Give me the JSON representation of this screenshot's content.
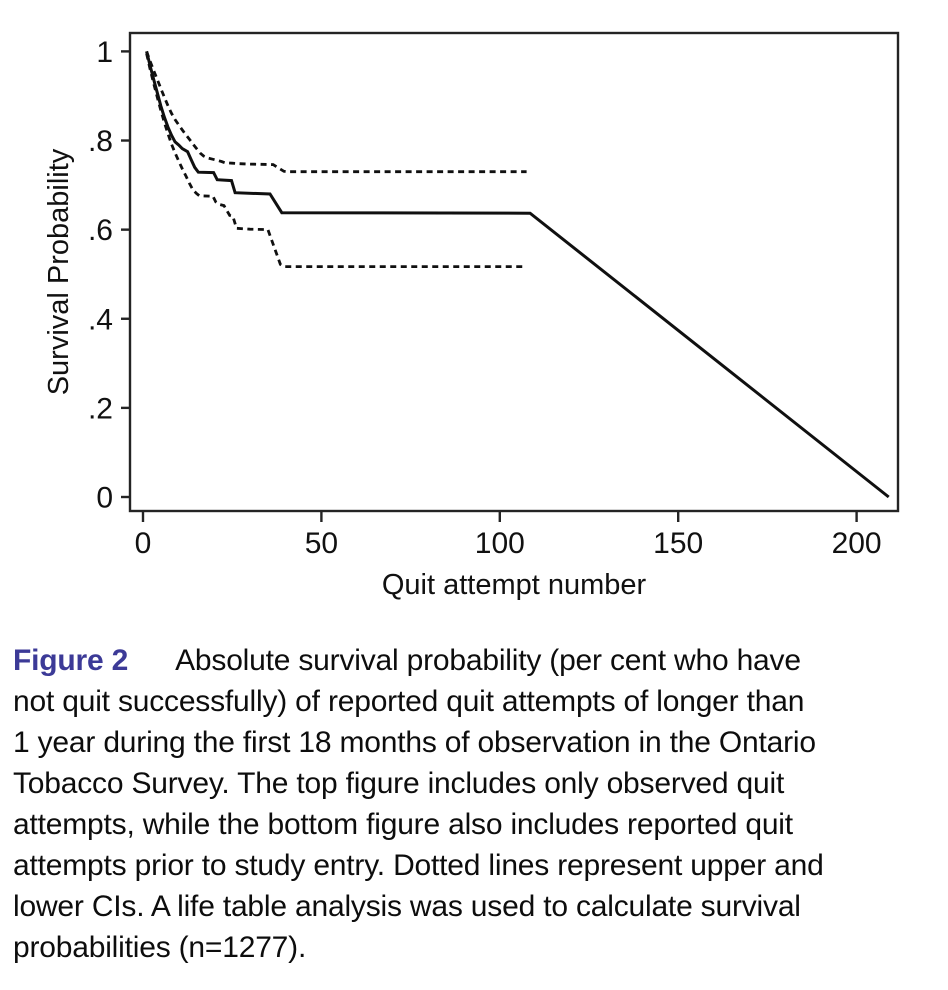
{
  "figure": {
    "caption": {
      "label": "Figure 2",
      "label_color": "#3c3a97",
      "lines": [
        "Absolute survival probability (per cent who have",
        "not quit successfully) of reported quit attempts of longer than",
        "1 year during the first 18 months of observation in the Ontario",
        "Tobacco Survey. The top figure includes only observed quit",
        "attempts, while the bottom figure also includes reported quit",
        "attempts prior to study entry. Dotted lines represent upper and",
        "lower CIs. A life table analysis was used to calculate survival",
        "probabilities (n=1277)."
      ],
      "sample_size": "n=1277"
    }
  },
  "chart_data": {
    "type": "line",
    "title": "",
    "xlabel": "Quit attempt number",
    "ylabel": "Survival Probability",
    "xlim": [
      0,
      211
    ],
    "ylim": [
      0,
      1
    ],
    "grid": false,
    "legend": "none",
    "line_color": "#101010",
    "xticks": [
      {
        "v": 0,
        "label": "0"
      },
      {
        "v": 50,
        "label": "50"
      },
      {
        "v": 100,
        "label": "100"
      },
      {
        "v": 150,
        "label": "150"
      },
      {
        "v": 200,
        "label": "200"
      }
    ],
    "yticks": [
      {
        "v": 0,
        "label": "0"
      },
      {
        "v": 0.2,
        "label": ".2"
      },
      {
        "v": 0.4,
        "label": ".4"
      },
      {
        "v": 0.6,
        "label": ".6"
      },
      {
        "v": 0.8,
        "label": ".8"
      },
      {
        "v": 1,
        "label": "1"
      }
    ],
    "series": [
      {
        "name": "Survival probability estimate",
        "id": "survival-line",
        "style": "solid",
        "points": [
          [
            1,
            1.0
          ],
          [
            2,
            0.968
          ],
          [
            3,
            0.937
          ],
          [
            4,
            0.907
          ],
          [
            5,
            0.878
          ],
          [
            6,
            0.852
          ],
          [
            7,
            0.83
          ],
          [
            8,
            0.812
          ],
          [
            9,
            0.797
          ],
          [
            10,
            0.79
          ],
          [
            11,
            0.782
          ],
          [
            12.5,
            0.775
          ],
          [
            13.5,
            0.757
          ],
          [
            14.5,
            0.74
          ],
          [
            15.5,
            0.729
          ],
          [
            19.8,
            0.728
          ],
          [
            20.8,
            0.712
          ],
          [
            24.8,
            0.71
          ],
          [
            25.8,
            0.683
          ],
          [
            35.6,
            0.68
          ],
          [
            38.9,
            0.638
          ],
          [
            108.5,
            0.637
          ],
          [
            209,
            0
          ]
        ]
      },
      {
        "name": "Upper CI",
        "id": "upper-ci-line",
        "style": "dashed",
        "points": [
          [
            1,
            1.0
          ],
          [
            2,
            0.978
          ],
          [
            3,
            0.957
          ],
          [
            4,
            0.937
          ],
          [
            5,
            0.917
          ],
          [
            6,
            0.897
          ],
          [
            7,
            0.878
          ],
          [
            8,
            0.861
          ],
          [
            9,
            0.847
          ],
          [
            10,
            0.835
          ],
          [
            11,
            0.824
          ],
          [
            12,
            0.813
          ],
          [
            13,
            0.803
          ],
          [
            14,
            0.792
          ],
          [
            15,
            0.782
          ],
          [
            16,
            0.772
          ],
          [
            17,
            0.765
          ],
          [
            18,
            0.761
          ],
          [
            19.5,
            0.758
          ],
          [
            20.5,
            0.756
          ],
          [
            22,
            0.753
          ],
          [
            23,
            0.75
          ],
          [
            25,
            0.749
          ],
          [
            27,
            0.748
          ],
          [
            30,
            0.747
          ],
          [
            36.5,
            0.746
          ],
          [
            38,
            0.738
          ],
          [
            39.5,
            0.731
          ],
          [
            40.5,
            0.73
          ],
          [
            107.5,
            0.73
          ]
        ]
      },
      {
        "name": "Lower CI",
        "id": "lower-ci-line",
        "style": "dashed",
        "points": [
          [
            1,
            0.995
          ],
          [
            2,
            0.96
          ],
          [
            3,
            0.928
          ],
          [
            4,
            0.897
          ],
          [
            5,
            0.868
          ],
          [
            6,
            0.84
          ],
          [
            7,
            0.815
          ],
          [
            8,
            0.792
          ],
          [
            9,
            0.772
          ],
          [
            10,
            0.754
          ],
          [
            11,
            0.737
          ],
          [
            12,
            0.721
          ],
          [
            13,
            0.704
          ],
          [
            14,
            0.689
          ],
          [
            15,
            0.681
          ],
          [
            15.8,
            0.676
          ],
          [
            19.6,
            0.675
          ],
          [
            20.4,
            0.662
          ],
          [
            21.2,
            0.657
          ],
          [
            22.7,
            0.654
          ],
          [
            23.5,
            0.643
          ],
          [
            24.3,
            0.632
          ],
          [
            25.2,
            0.63
          ],
          [
            26.2,
            0.603
          ],
          [
            30,
            0.601
          ],
          [
            35,
            0.6
          ],
          [
            38.5,
            0.522
          ],
          [
            39.5,
            0.517
          ],
          [
            107,
            0.517
          ]
        ]
      }
    ]
  }
}
